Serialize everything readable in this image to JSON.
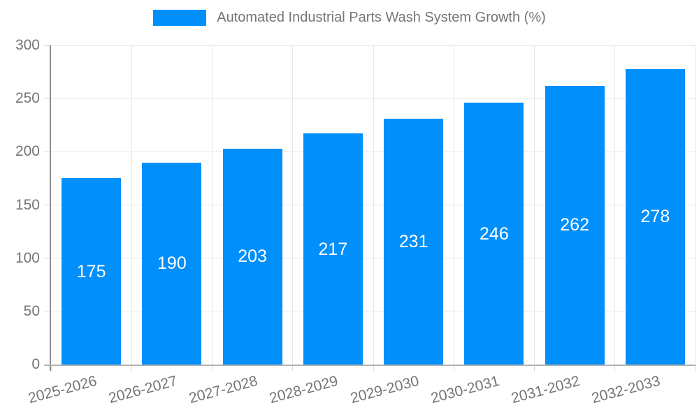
{
  "chart_data": {
    "type": "bar",
    "title": "Automated Industrial Parts Wash System Growth (%)",
    "categories": [
      "2025-2026",
      "2026-2027",
      "2027-2028",
      "2028-2029",
      "2029-2030",
      "2030-2031",
      "2031-2032",
      "2032-2033"
    ],
    "values": [
      175,
      190,
      203,
      217,
      231,
      246,
      262,
      278
    ],
    "xlabel": "",
    "ylabel": "",
    "ylim": [
      0,
      300
    ],
    "yticks": [
      0,
      50,
      100,
      150,
      200,
      250,
      300
    ],
    "grid": true,
    "legend_position": "top",
    "bar_color": "#008FFB",
    "value_label_color": "#ffffff",
    "axis_text_color": "#757575",
    "grid_color": "#e7e7e7",
    "tick_color": "#d9d9d9",
    "y_axis_line_color": "#8e8e8e",
    "x_axis_line_color": "#b3b3b3"
  }
}
